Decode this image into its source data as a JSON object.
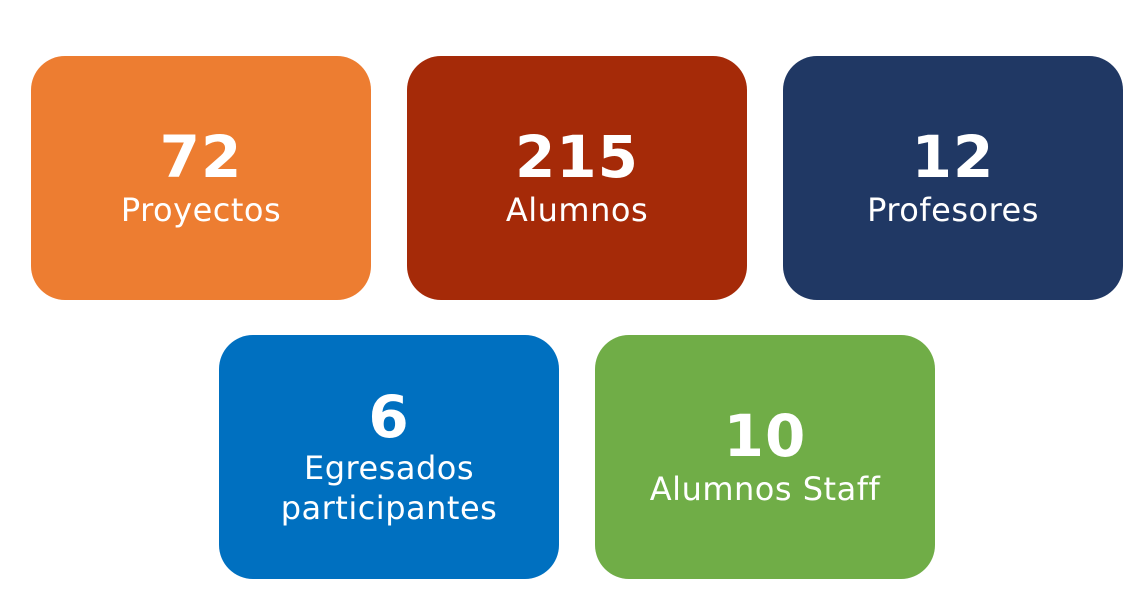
{
  "stats": [
    {
      "value": "72",
      "label": "Proyectos",
      "label2": "",
      "color": "#ED7D31"
    },
    {
      "value": "215",
      "label": "Alumnos",
      "label2": "",
      "color": "#A52A08"
    },
    {
      "value": "12",
      "label": "Profesores",
      "label2": "",
      "color": "#203864"
    },
    {
      "value": "6",
      "label": "Egresados",
      "label2": "participantes",
      "color": "#0070C0"
    },
    {
      "value": "10",
      "label": "Alumnos Staff",
      "label2": "",
      "color": "#70AD47"
    }
  ]
}
